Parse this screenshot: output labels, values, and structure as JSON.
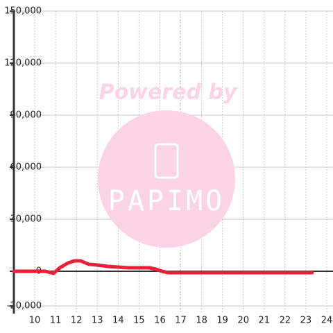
{
  "chart_data": {
    "type": "line",
    "x": [
      9,
      10,
      10.5,
      10.9,
      11.2,
      11.6,
      11.9,
      12.2,
      12.6,
      13,
      13.5,
      14,
      14.5,
      15,
      15.5,
      15.8,
      16.1,
      16.4,
      17,
      18,
      19,
      20,
      21,
      22,
      23.3
    ],
    "series": [
      {
        "name": "value",
        "color": "#e8203a",
        "values": [
          0,
          0,
          0,
          -1200,
          2000,
          4800,
          6000,
          6000,
          4000,
          3600,
          2800,
          2400,
          2000,
          2000,
          2000,
          1200,
          0,
          -800,
          -800,
          -800,
          -800,
          -800,
          -800,
          -800,
          -800
        ]
      }
    ],
    "xlim": [
      9,
      24.3
    ],
    "xticks": [
      10,
      11,
      12,
      13,
      14,
      15,
      16,
      17,
      18,
      19,
      20,
      21,
      22,
      23,
      24
    ],
    "ylim": [
      -24400,
      150000
    ],
    "yticks": [
      {
        "value": 150000,
        "label": "150,000"
      },
      {
        "value": 120000,
        "label": "120,000"
      },
      {
        "value": 90000,
        "label": "90,000"
      },
      {
        "value": 60000,
        "label": "60,000"
      },
      {
        "value": 30000,
        "label": "30,000"
      },
      0,
      {
        "value": -20000,
        "label": "-20,000"
      }
    ],
    "grid": true
  },
  "watermark": {
    "title": "Powered by",
    "brand": "PAPIMO"
  }
}
